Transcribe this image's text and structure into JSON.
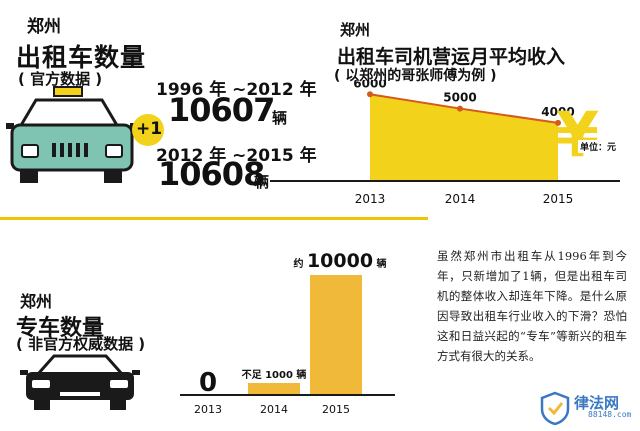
{
  "taxi_count": {
    "city": "郑州",
    "title": "出租车数量",
    "subtitle": "( 官方数据 )",
    "period1": "1996 年 ~2012 年",
    "count1": "10607",
    "unit1": "辆",
    "increment": "+1",
    "period2": "2012 年 ~2015 年",
    "count2": "10608",
    "unit2": "辆"
  },
  "income": {
    "city": "郑州",
    "title": "出租车司机营运月平均收入",
    "subtitle": "( 以郑州的哥张师傅为例 )",
    "unit_label": "单位：元",
    "currency_symbol": "¥"
  },
  "ride_hailing": {
    "city": "郑州",
    "title": "专车数量",
    "subtitle": "( 非官方权威数据 )"
  },
  "article": {
    "text": "虽然郑州市出租车从1996年到今年，只新增加了1辆，但是出租车司机的整体收入却连年下降。是什么原因导致出租车行业收入的下滑？恐怕这和日益兴起的“专车”等新兴的租车方式有很大的关系。"
  },
  "watermark": {
    "name": "律法网",
    "url": "88148.com"
  },
  "colors": {
    "yellow": "#f2d21a",
    "taxi_body": "#7fc4b2",
    "dark": "#1a1a1a",
    "line": "#d35a1c",
    "orange": "#f0b93a"
  },
  "chart_data": [
    {
      "type": "area",
      "x": [
        "2013",
        "2014",
        "2015"
      ],
      "values": [
        6000,
        5000,
        4000
      ],
      "data_labels": [
        "6000",
        "5000",
        "4000"
      ],
      "title": "出租车司机营运月平均收入",
      "subtitle": "( 以郑州的哥张师傅为例 )",
      "unit": "单位：元",
      "ylim": [
        0,
        7000
      ],
      "grid": false
    },
    {
      "type": "bar",
      "categories": [
        "2013",
        "2014",
        "2015"
      ],
      "values": [
        0,
        1000,
        10000
      ],
      "data_labels": [
        "0",
        "不足 1000 辆",
        "约 10000 辆"
      ],
      "title": "专车数量",
      "subtitle": "( 非官方权威数据 )",
      "ylim": [
        0,
        10000
      ],
      "grid": false
    }
  ]
}
